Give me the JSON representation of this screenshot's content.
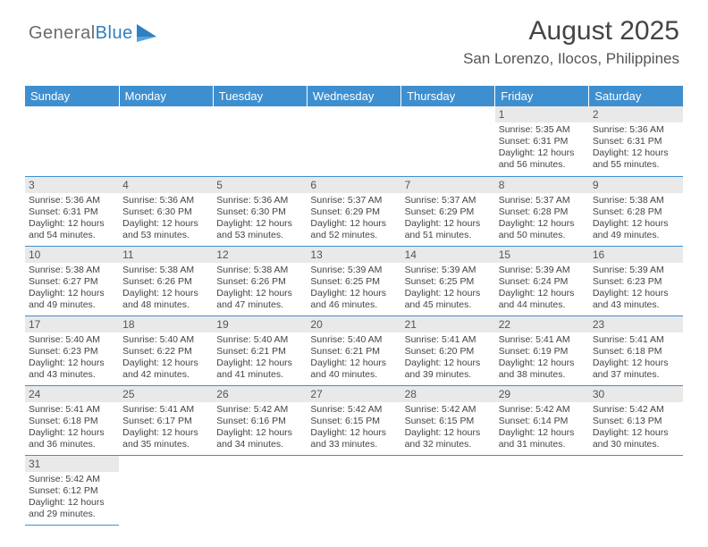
{
  "logo": {
    "text1": "General",
    "text2": "Blue"
  },
  "title": "August 2025",
  "location": "San Lorenzo, Ilocos, Philippines",
  "colors": {
    "header_bg": "#3e8fd0",
    "daynum_bg": "#e9e9e9",
    "border": "#3e8fd0"
  },
  "weekdays": [
    "Sunday",
    "Monday",
    "Tuesday",
    "Wednesday",
    "Thursday",
    "Friday",
    "Saturday"
  ],
  "weeks": [
    [
      null,
      null,
      null,
      null,
      null,
      {
        "n": "1",
        "sr": "5:35 AM",
        "ss": "6:31 PM",
        "dl": "12 hours and 56 minutes."
      },
      {
        "n": "2",
        "sr": "5:36 AM",
        "ss": "6:31 PM",
        "dl": "12 hours and 55 minutes."
      }
    ],
    [
      {
        "n": "3",
        "sr": "5:36 AM",
        "ss": "6:31 PM",
        "dl": "12 hours and 54 minutes."
      },
      {
        "n": "4",
        "sr": "5:36 AM",
        "ss": "6:30 PM",
        "dl": "12 hours and 53 minutes."
      },
      {
        "n": "5",
        "sr": "5:36 AM",
        "ss": "6:30 PM",
        "dl": "12 hours and 53 minutes."
      },
      {
        "n": "6",
        "sr": "5:37 AM",
        "ss": "6:29 PM",
        "dl": "12 hours and 52 minutes."
      },
      {
        "n": "7",
        "sr": "5:37 AM",
        "ss": "6:29 PM",
        "dl": "12 hours and 51 minutes."
      },
      {
        "n": "8",
        "sr": "5:37 AM",
        "ss": "6:28 PM",
        "dl": "12 hours and 50 minutes."
      },
      {
        "n": "9",
        "sr": "5:38 AM",
        "ss": "6:28 PM",
        "dl": "12 hours and 49 minutes."
      }
    ],
    [
      {
        "n": "10",
        "sr": "5:38 AM",
        "ss": "6:27 PM",
        "dl": "12 hours and 49 minutes."
      },
      {
        "n": "11",
        "sr": "5:38 AM",
        "ss": "6:26 PM",
        "dl": "12 hours and 48 minutes."
      },
      {
        "n": "12",
        "sr": "5:38 AM",
        "ss": "6:26 PM",
        "dl": "12 hours and 47 minutes."
      },
      {
        "n": "13",
        "sr": "5:39 AM",
        "ss": "6:25 PM",
        "dl": "12 hours and 46 minutes."
      },
      {
        "n": "14",
        "sr": "5:39 AM",
        "ss": "6:25 PM",
        "dl": "12 hours and 45 minutes."
      },
      {
        "n": "15",
        "sr": "5:39 AM",
        "ss": "6:24 PM",
        "dl": "12 hours and 44 minutes."
      },
      {
        "n": "16",
        "sr": "5:39 AM",
        "ss": "6:23 PM",
        "dl": "12 hours and 43 minutes."
      }
    ],
    [
      {
        "n": "17",
        "sr": "5:40 AM",
        "ss": "6:23 PM",
        "dl": "12 hours and 43 minutes."
      },
      {
        "n": "18",
        "sr": "5:40 AM",
        "ss": "6:22 PM",
        "dl": "12 hours and 42 minutes."
      },
      {
        "n": "19",
        "sr": "5:40 AM",
        "ss": "6:21 PM",
        "dl": "12 hours and 41 minutes."
      },
      {
        "n": "20",
        "sr": "5:40 AM",
        "ss": "6:21 PM",
        "dl": "12 hours and 40 minutes."
      },
      {
        "n": "21",
        "sr": "5:41 AM",
        "ss": "6:20 PM",
        "dl": "12 hours and 39 minutes."
      },
      {
        "n": "22",
        "sr": "5:41 AM",
        "ss": "6:19 PM",
        "dl": "12 hours and 38 minutes."
      },
      {
        "n": "23",
        "sr": "5:41 AM",
        "ss": "6:18 PM",
        "dl": "12 hours and 37 minutes."
      }
    ],
    [
      {
        "n": "24",
        "sr": "5:41 AM",
        "ss": "6:18 PM",
        "dl": "12 hours and 36 minutes."
      },
      {
        "n": "25",
        "sr": "5:41 AM",
        "ss": "6:17 PM",
        "dl": "12 hours and 35 minutes."
      },
      {
        "n": "26",
        "sr": "5:42 AM",
        "ss": "6:16 PM",
        "dl": "12 hours and 34 minutes."
      },
      {
        "n": "27",
        "sr": "5:42 AM",
        "ss": "6:15 PM",
        "dl": "12 hours and 33 minutes."
      },
      {
        "n": "28",
        "sr": "5:42 AM",
        "ss": "6:15 PM",
        "dl": "12 hours and 32 minutes."
      },
      {
        "n": "29",
        "sr": "5:42 AM",
        "ss": "6:14 PM",
        "dl": "12 hours and 31 minutes."
      },
      {
        "n": "30",
        "sr": "5:42 AM",
        "ss": "6:13 PM",
        "dl": "12 hours and 30 minutes."
      }
    ],
    [
      {
        "n": "31",
        "sr": "5:42 AM",
        "ss": "6:12 PM",
        "dl": "12 hours and 29 minutes."
      },
      null,
      null,
      null,
      null,
      null,
      null
    ]
  ],
  "labels": {
    "sunrise": "Sunrise:",
    "sunset": "Sunset:",
    "daylight": "Daylight:"
  }
}
